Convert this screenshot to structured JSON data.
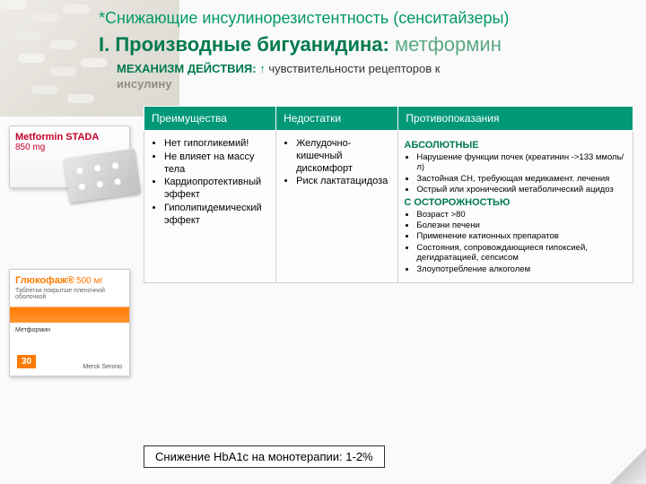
{
  "header": {
    "super": "*Снижающие инсулинорезистентность (сенситайзеры)",
    "title_prefix": "I. Производные бигуанидина:",
    "title_drug": "метформин"
  },
  "mechanism": {
    "label": "МЕХАНИЗМ ДЕЙСТВИЯ:",
    "arrow": "↑",
    "text": "чувствительности рецепторов к",
    "text2": "инсулину"
  },
  "products": {
    "metformin": {
      "name": "Metformin STADA",
      "dose": "850 mg"
    },
    "glucophage": {
      "name": "Глюкофаж®",
      "dose": "500 мг",
      "sub": "Таблетки покрытые пленочной оболочкой",
      "ingredient": "Метформин",
      "qty": "30",
      "maker": "Merck Serono"
    }
  },
  "table": {
    "headers": {
      "adv": "Преимущества",
      "dis": "Недостатки",
      "contra": "Противопоказания"
    },
    "advantages": [
      "Нет гипогликемий!",
      "Не влияет на массу тела",
      "Кардиопротективный эффект",
      "Гиполипидемический эффект"
    ],
    "disadvantages": [
      "Желудочно-кишечный дискомфорт",
      "Риск лактатацидоза"
    ],
    "contra_abs_head": "АБСОЛЮТНЫЕ",
    "contra_abs": [
      "Нарушение функции почек (креатинин ->133 ммоль/л)",
      "Застойная СН, требующая медикамент. лечения",
      "Острый или хронический метаболический ацидоз"
    ],
    "contra_caution_head": "С ОСТОРОЖНОСТЬЮ",
    "contra_caution": [
      "Возраст >80",
      "Болезни печени",
      "Применение катионных препаратов",
      "Состояния, сопровождающиеся гипоксией, дегидратацией, сепсисом",
      "Злоупотребление алкоголем"
    ]
  },
  "footer": "Снижение HbA1c на монотерапии: 1-2%"
}
